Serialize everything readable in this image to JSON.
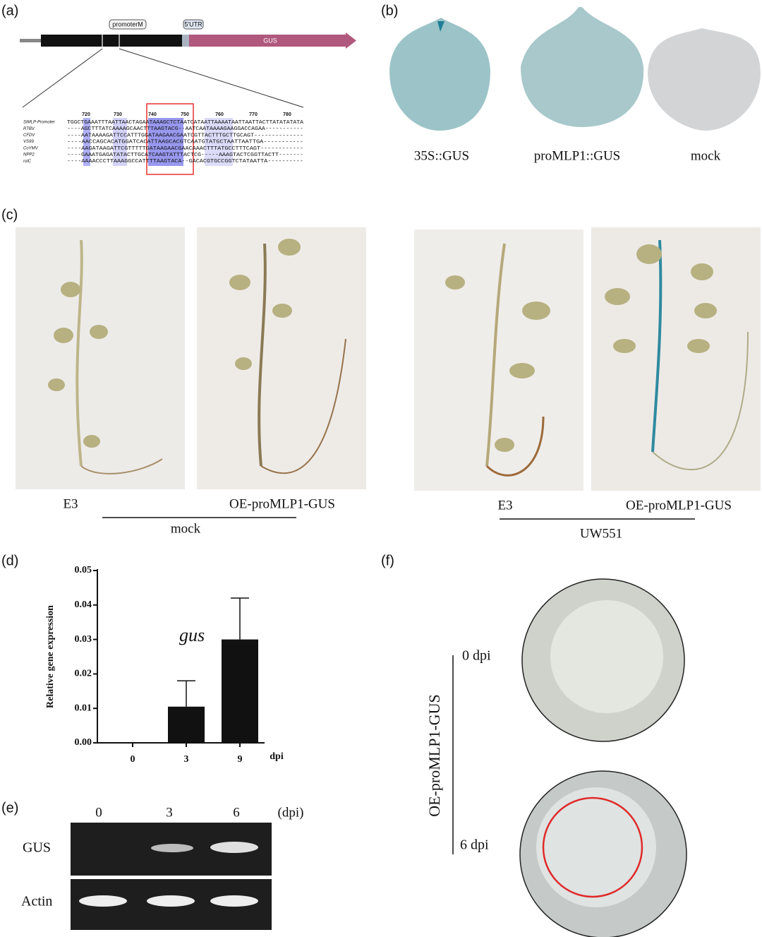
{
  "panel_a": {
    "label": "(a)",
    "promoter": "promoterM",
    "utr": "5'UTR",
    "gus": "GUS",
    "alignment": {
      "positions": [
        "720",
        "730",
        "740",
        "750",
        "760",
        "770",
        "780"
      ],
      "rows": [
        {
          "name": "StMLP-Promoter",
          "seq": "TGGCTGAAATTTAATTAACTAGAATAAAGCTCTAATCATAATTAAAATAATTAATTACTTATATATATA"
        },
        {
          "name": "RTBV",
          "seq": "----AGCTTTATCAAAAGCAACTTTAAGTACG--AATCAATAAAAGAAGGACCAGAA-----------"
        },
        {
          "name": "CFDV",
          "seq": "----AATAAAAGATTCCATTTGGATAAGAACGAATCGTTACTTTGCTTGCAGT--------------"
        },
        {
          "name": "VS99",
          "seq": "----AACCAGCACATGGATCACATTAAGCACGTCAATGTATGCTAATTAATTGA-----------"
        },
        {
          "name": "CoYMV",
          "seq": "----AAGATAAGATTCGTTTTTGATAAGAACGAACAAACTTTATGCCTTTCAGT------------"
        },
        {
          "name": "NPP2",
          "seq": "----GAAATGAGATATACTTGCATCAAGTATTTACTCG-----AAAGTACTCGGTTACTT-------"
        },
        {
          "name": "rolC",
          "seq": "----AAAACCCTTAAAGGCCATTTTAAGTACA--GACACGTGCCGGTCTATAATTA----------"
        }
      ]
    }
  },
  "panel_b": {
    "label": "(b)",
    "captions": [
      "35S::GUS",
      "proMLP1::GUS",
      "mock"
    ]
  },
  "panel_c": {
    "label": "(c)",
    "captions": [
      "E3",
      "OE-proMLP1-GUS",
      "E3",
      "OE-proMLP1-GUS"
    ],
    "groups": [
      "mock",
      "UW551"
    ]
  },
  "chart_data": {
    "type": "bar",
    "panel_label": "(d)",
    "ylabel": "Relative gene expression",
    "annotation": "gus",
    "xlabel": "dpi",
    "categories": [
      "0",
      "3",
      "9"
    ],
    "values": [
      0,
      0.0105,
      0.03
    ],
    "errors": [
      0,
      0.0075,
      0.012
    ],
    "color": "#111111",
    "ylim": [
      0,
      0.05
    ],
    "yticks": [
      {
        "value": 0,
        "label": "0.00"
      },
      {
        "value": 0.01,
        "label": "0.01"
      },
      {
        "value": 0.02,
        "label": "0.02"
      },
      {
        "value": 0.03,
        "label": "0.03"
      },
      {
        "value": 0.04,
        "label": "0.04"
      },
      {
        "value": 0.05,
        "label": "0.05"
      }
    ]
  },
  "panel_e": {
    "label": "(e)",
    "lanes": [
      "0",
      "3",
      "6"
    ],
    "unit": "(dpi)",
    "rows": [
      "GUS",
      "Actin"
    ]
  },
  "panel_f": {
    "label": "(f)",
    "times": [
      "0 dpi",
      "6 dpi"
    ],
    "line": "OE-proMLP1-GUS"
  }
}
